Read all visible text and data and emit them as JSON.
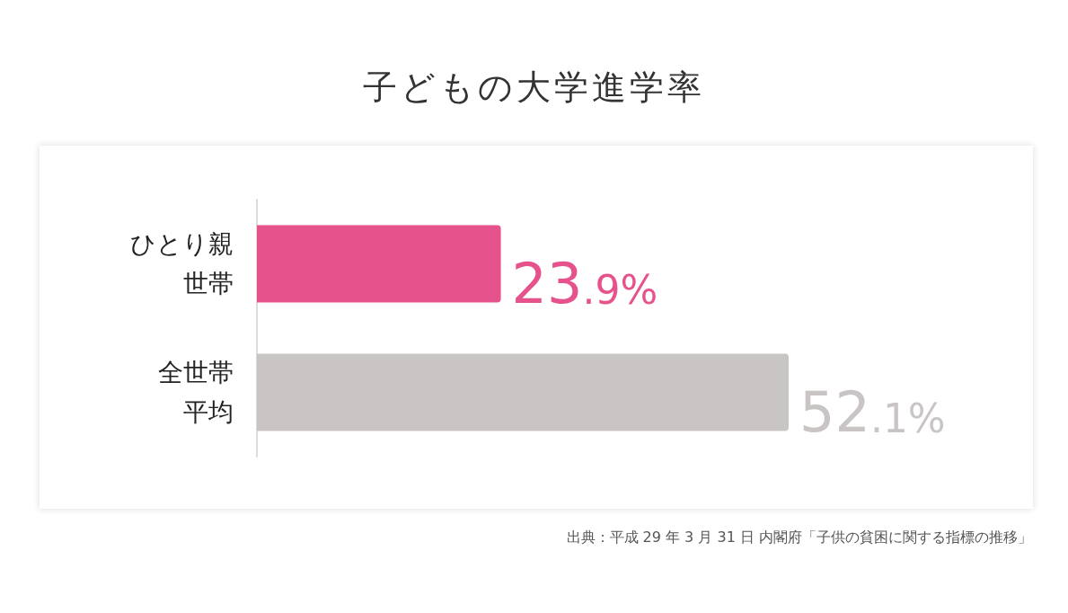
{
  "chart_data": {
    "type": "bar",
    "orientation": "horizontal",
    "title": "子どもの大学進学率",
    "categories": [
      "ひとり親世帯",
      "全世帯平均"
    ],
    "values": [
      23.9,
      52.1
    ],
    "colors": [
      "#e6538c",
      "#c9c5c4"
    ],
    "value_labels": [
      "23.9%",
      "52.1%"
    ],
    "annotations": [
      "出典：平成 29 年 3 月 31 日 内閣府「子供の貧困に関する指標の推移」"
    ]
  }
}
